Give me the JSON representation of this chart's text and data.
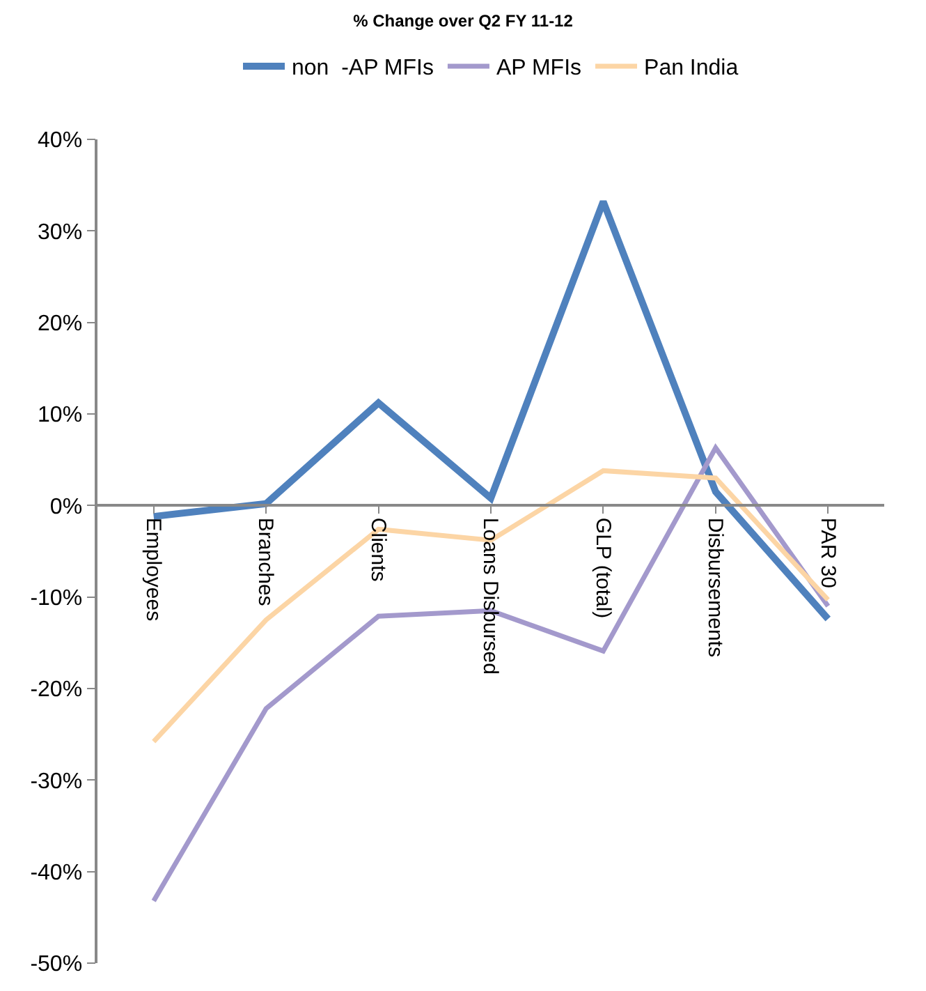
{
  "chart_data": {
    "type": "line",
    "title": "% Change over Q2 FY 11-12",
    "categories": [
      "Employees",
      "Branches",
      "Clients",
      "Loans Disbursed",
      "GLP (total)",
      "Disbursements",
      "PAR 30"
    ],
    "series": [
      {
        "name": "non  -AP MFIs",
        "color": "#4f81bd",
        "values": [
          -1.2,
          0.2,
          11.2,
          0.8,
          33.2,
          1.5,
          -12.4
        ]
      },
      {
        "name": "AP MFIs",
        "color": "#a399cc",
        "values": [
          -43.2,
          -22.2,
          -12.1,
          -11.5,
          -15.9,
          6.3,
          -11.0
        ]
      },
      {
        "name": "Pan India",
        "color": "#fcd5a5",
        "values": [
          -25.8,
          -12.5,
          -2.6,
          -3.8,
          3.8,
          3.0,
          -10.3
        ]
      }
    ],
    "ylim": [
      -50,
      40
    ],
    "yticks": [
      {
        "value": -50,
        "label": "-50%"
      },
      {
        "value": -40,
        "label": "-40%"
      },
      {
        "value": -30,
        "label": "-30%"
      },
      {
        "value": -20,
        "label": "-20%"
      },
      {
        "value": -10,
        "label": "-10%"
      },
      {
        "value": 0,
        "label": "0%"
      },
      {
        "value": 10,
        "label": "10%"
      },
      {
        "value": 20,
        "label": "20%"
      },
      {
        "value": 30,
        "label": "30%"
      },
      {
        "value": 40,
        "label": "40%"
      }
    ],
    "grid": false,
    "legend": "top",
    "marker": "none",
    "line_style": "solid"
  }
}
